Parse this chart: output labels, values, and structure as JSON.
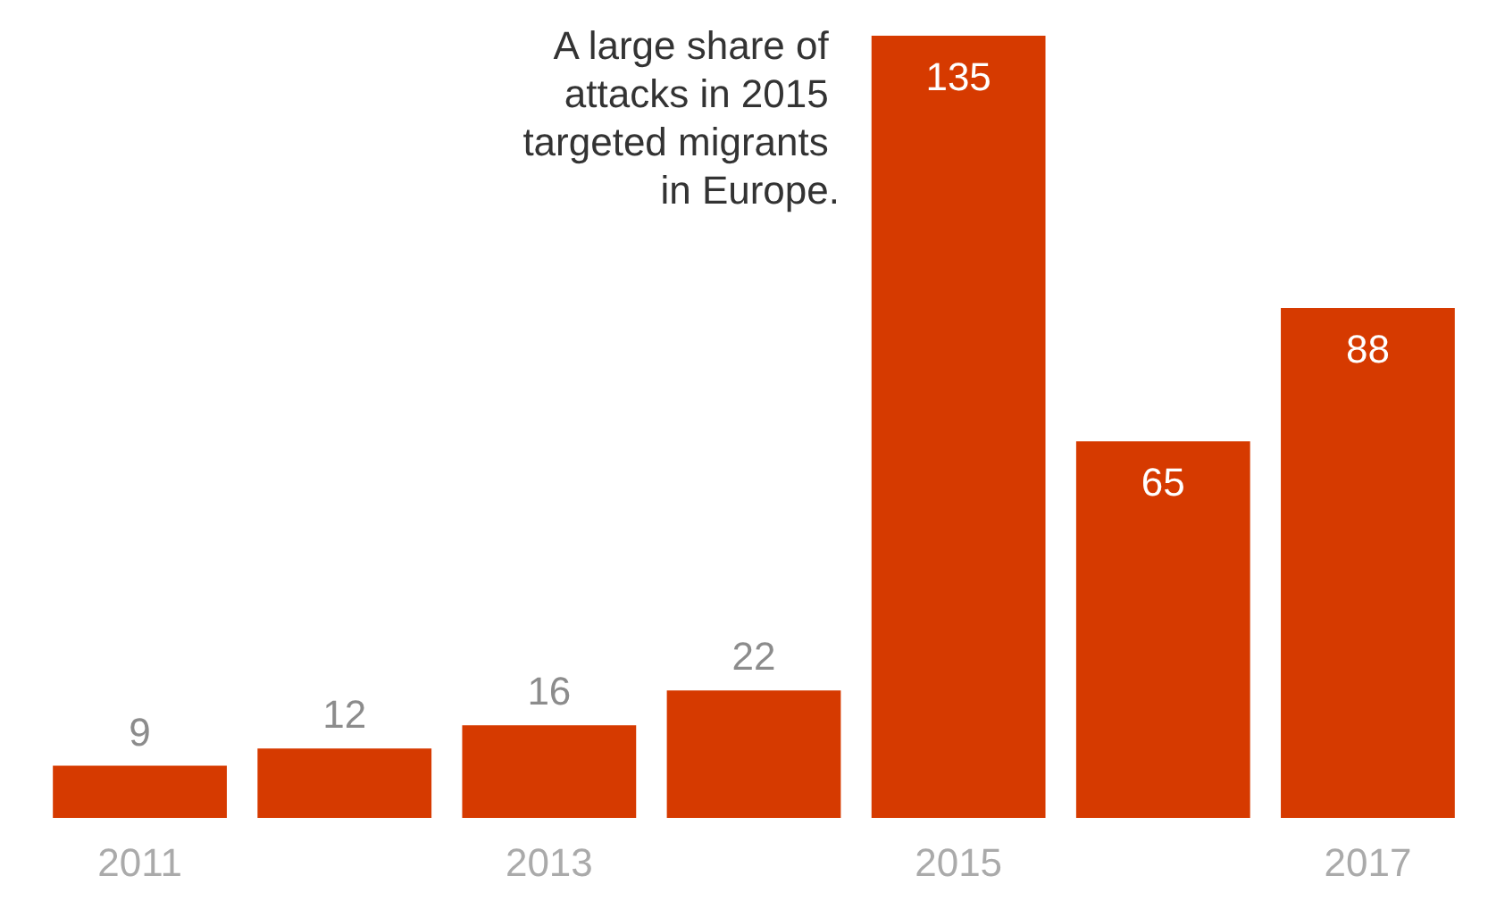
{
  "chart_data": {
    "type": "bar",
    "categories": [
      "2011",
      null,
      "2013",
      null,
      "2015",
      null,
      "2017"
    ],
    "values": [
      9,
      12,
      16,
      22,
      135,
      65,
      88
    ],
    "color": "#d63a00",
    "data_labels": true,
    "annotations": [
      "A large share of attacks in 2015 targeted migrants in Europe."
    ]
  }
}
